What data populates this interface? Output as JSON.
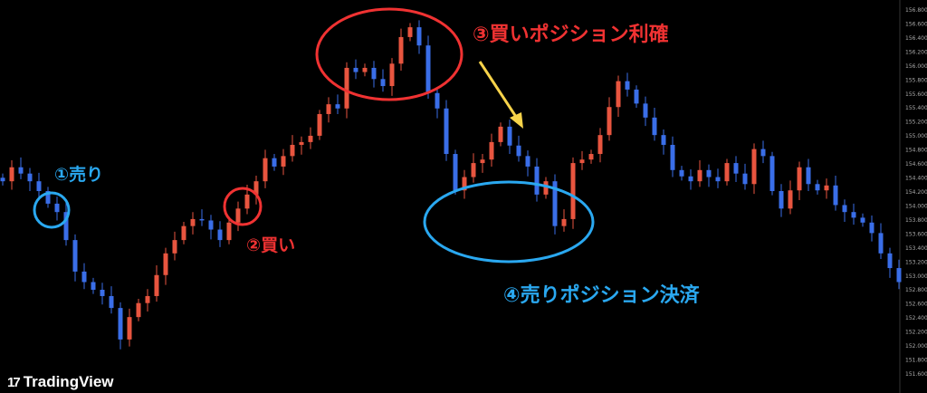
{
  "chart_data": {
    "type": "candlestick",
    "title": "",
    "xlabel": "",
    "ylabel": "",
    "ylim": [
      151.6,
      156.8
    ],
    "y_ticks": [
      "156.800",
      "156.600",
      "156.400",
      "156.200",
      "156.000",
      "155.800",
      "155.600",
      "155.400",
      "155.200",
      "155.000",
      "154.800",
      "154.600",
      "154.400",
      "154.200",
      "154.000",
      "153.800",
      "153.600",
      "153.400",
      "153.200",
      "153.000",
      "152.800",
      "152.600",
      "152.400",
      "152.200",
      "152.000",
      "151.800",
      "151.600"
    ],
    "axis_position": "right",
    "grid": false,
    "closes": [
      154.34,
      154.54,
      154.45,
      154.34,
      154.2,
      154.02,
      153.9,
      153.5,
      153.05,
      152.9,
      152.79,
      152.7,
      152.53,
      152.08,
      152.4,
      152.6,
      152.7,
      153.0,
      153.31,
      153.5,
      153.7,
      153.8,
      153.78,
      153.65,
      153.5,
      153.75,
      153.95,
      154.15,
      154.34,
      154.67,
      154.55,
      154.7,
      154.86,
      154.9,
      154.99,
      155.3,
      155.44,
      155.38,
      155.96,
      155.9,
      155.96,
      155.8,
      155.7,
      156.02,
      156.4,
      156.54,
      156.28,
      155.6,
      155.38,
      154.73,
      154.21,
      154.4,
      154.6,
      154.65,
      154.9,
      155.12,
      154.85,
      154.7,
      154.55,
      154.15,
      154.34,
      153.7,
      153.8,
      154.6,
      154.65,
      154.73,
      155.0,
      155.4,
      155.77,
      155.65,
      155.45,
      155.25,
      155.0,
      154.86,
      154.5,
      154.41,
      154.34,
      154.5,
      154.4,
      154.34,
      154.6,
      154.45,
      154.3,
      154.8,
      154.7,
      154.2,
      153.95,
      154.21,
      154.54,
      154.3,
      154.21,
      154.28,
      154.0,
      153.9,
      153.82,
      153.75,
      153.6,
      153.31,
      153.1,
      152.9
    ],
    "colors": {
      "up": "#e8553f",
      "down": "#3a6ee8",
      "background": "#000000"
    }
  },
  "annotations": {
    "sell": {
      "label": "①売り",
      "color": "#2aa8f0"
    },
    "buy": {
      "label": "②買い",
      "color": "#f03232"
    },
    "take_profit": {
      "label": "③買いポジション利確",
      "color": "#f03232"
    },
    "close_sell": {
      "label": "④売りポジション決済",
      "color": "#2aa8f0"
    },
    "arrow_color": "#f7d34a"
  },
  "logo": {
    "text": "TradingView"
  }
}
